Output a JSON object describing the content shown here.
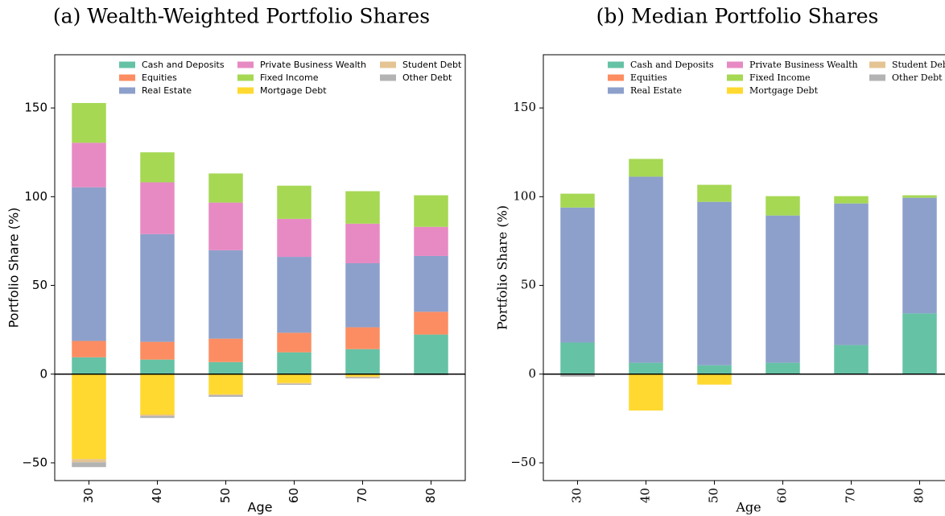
{
  "chart_data": [
    {
      "type": "stacked_bar",
      "title": "(a) Wealth-Weighted Portfolio Shares",
      "font": "sans-serif",
      "x_label": "Age",
      "y_label": "Portfolio Share (%)",
      "categories": [
        "30",
        "40",
        "50",
        "60",
        "70",
        "80"
      ],
      "ylim": [
        -60,
        180
      ],
      "yticks": [
        {
          "value": -50,
          "label": "−50"
        },
        0,
        50,
        100,
        150
      ],
      "series": [
        {
          "name": "Cash and Deposits",
          "color": "#66c2a5",
          "values": [
            9.5,
            8.2,
            6.8,
            12.3,
            14.1,
            22.3
          ]
        },
        {
          "name": "Equities",
          "color": "#fc8d62",
          "values": [
            9.2,
            10,
            13.2,
            11,
            12.3,
            12.8
          ]
        },
        {
          "name": "Real Estate",
          "color": "#8da0cb",
          "values": [
            86.6,
            60.7,
            49.8,
            42.8,
            36.1,
            31.5
          ]
        },
        {
          "name": "Private Business Wealth",
          "color": "#e78ac3",
          "values": [
            25.1,
            29.2,
            26.9,
            21.4,
            22.3,
            16.4
          ]
        },
        {
          "name": "Fixed Income",
          "color": "#a6d854",
          "values": [
            22.4,
            16.9,
            16.4,
            18.7,
            18.3,
            17.8
          ]
        },
        {
          "name": "Mortgage Debt",
          "color": "#ffd92f",
          "values": [
            -47.9,
            -22.8,
            -11.4,
            -5,
            -1.4,
            -0.3
          ]
        },
        {
          "name": "Student Debt",
          "color": "#e5c494",
          "values": [
            -1.8,
            -0.9,
            -0.5,
            -0.5,
            -0.5,
            0
          ]
        },
        {
          "name": "Other Debt",
          "color": "#b3b3b3",
          "values": [
            -2.7,
            -1,
            -0.9,
            -0.5,
            -0.5,
            -0.3
          ]
        }
      ]
    },
    {
      "type": "stacked_bar",
      "title": "(b) Median Portfolio Shares",
      "font": "serif",
      "x_label": "Age",
      "y_label": "Portfolio Share (%)",
      "categories": [
        "30",
        "40",
        "50",
        "60",
        "70",
        "80"
      ],
      "ylim": [
        -60,
        180
      ],
      "yticks": [
        {
          "value": -50,
          "label": "−50"
        },
        0,
        50,
        100,
        150
      ],
      "series": [
        {
          "name": "Cash and Deposits",
          "color": "#66c2a5",
          "values": [
            17.8,
            6.4,
            5,
            6.4,
            16.4,
            34.2
          ]
        },
        {
          "name": "Equities",
          "color": "#fc8d62",
          "values": [
            0,
            0,
            0,
            0,
            0,
            0
          ]
        },
        {
          "name": "Real Estate",
          "color": "#8da0cb",
          "values": [
            76.1,
            104.9,
            92.1,
            83,
            79.8,
            65.2
          ]
        },
        {
          "name": "Private Business Wealth",
          "color": "#e78ac3",
          "values": [
            0,
            0,
            0,
            0,
            0,
            0
          ]
        },
        {
          "name": "Fixed Income",
          "color": "#a6d854",
          "values": [
            7.8,
            10,
            9.6,
            10.9,
            4.1,
            1.4
          ]
        },
        {
          "name": "Mortgage Debt",
          "color": "#ffd92f",
          "values": [
            0,
            -20.5,
            -5.9,
            0,
            0,
            0
          ]
        },
        {
          "name": "Student Debt",
          "color": "#e5c494",
          "values": [
            0,
            0,
            0,
            0,
            0,
            0
          ]
        },
        {
          "name": "Other Debt",
          "color": "#b3b3b3",
          "values": [
            -1.4,
            0,
            0,
            0,
            0,
            0
          ]
        }
      ]
    }
  ]
}
